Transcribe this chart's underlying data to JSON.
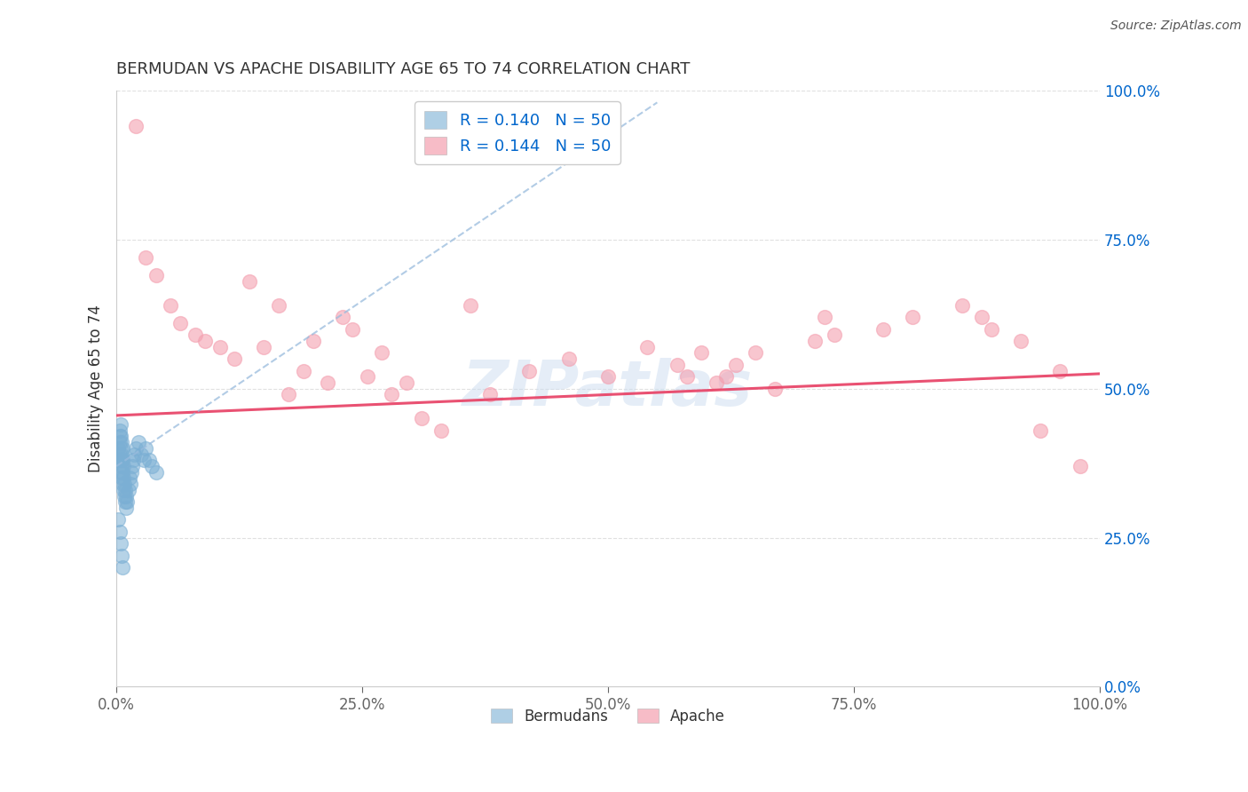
{
  "title": "BERMUDAN VS APACHE DISABILITY AGE 65 TO 74 CORRELATION CHART",
  "ylabel": "Disability Age 65 to 74",
  "source_text": "Source: ZipAtlas.com",
  "legend_blue_r": "R = 0.140",
  "legend_blue_n": "N = 50",
  "legend_pink_r": "R = 0.144",
  "legend_pink_n": "N = 50",
  "legend_blue_label": "Bermudans",
  "legend_pink_label": "Apache",
  "xlim": [
    0.0,
    1.0
  ],
  "ylim": [
    0.0,
    1.0
  ],
  "xticks": [
    0.0,
    0.25,
    0.5,
    0.75,
    1.0
  ],
  "yticks": [
    0.0,
    0.25,
    0.5,
    0.75,
    1.0
  ],
  "xticklabels": [
    "0.0%",
    "25.0%",
    "50.0%",
    "75.0%",
    "100.0%"
  ],
  "yticklabels": [
    "0.0%",
    "25.0%",
    "50.0%",
    "75.0%",
    "100.0%"
  ],
  "blue_dot_color": "#7BAFD4",
  "pink_dot_color": "#F4A0B0",
  "blue_line_color": "#99BBDD",
  "pink_line_color": "#E8476A",
  "background_color": "#FFFFFF",
  "grid_color": "#DDDDDD",
  "watermark_color": "#DDEEFF",
  "title_color": "#333333",
  "tick_color": "#0066CC",
  "ylabel_color": "#333333",
  "bermudans_x": [
    0.002,
    0.002,
    0.003,
    0.003,
    0.003,
    0.003,
    0.004,
    0.004,
    0.004,
    0.004,
    0.004,
    0.005,
    0.005,
    0.005,
    0.005,
    0.005,
    0.006,
    0.006,
    0.006,
    0.006,
    0.007,
    0.007,
    0.007,
    0.008,
    0.008,
    0.009,
    0.009,
    0.01,
    0.01,
    0.011,
    0.012,
    0.013,
    0.014,
    0.015,
    0.016,
    0.017,
    0.018,
    0.02,
    0.022,
    0.025,
    0.028,
    0.03,
    0.033,
    0.036,
    0.04,
    0.002,
    0.003,
    0.004,
    0.005,
    0.006
  ],
  "bermudans_y": [
    0.38,
    0.4,
    0.42,
    0.39,
    0.41,
    0.43,
    0.36,
    0.38,
    0.4,
    0.42,
    0.44,
    0.35,
    0.37,
    0.39,
    0.41,
    0.38,
    0.34,
    0.36,
    0.38,
    0.4,
    0.33,
    0.35,
    0.37,
    0.32,
    0.34,
    0.31,
    0.33,
    0.3,
    0.32,
    0.31,
    0.33,
    0.35,
    0.34,
    0.36,
    0.37,
    0.38,
    0.39,
    0.4,
    0.41,
    0.39,
    0.38,
    0.4,
    0.38,
    0.37,
    0.36,
    0.28,
    0.26,
    0.24,
    0.22,
    0.2
  ],
  "apache_x": [
    0.02,
    0.03,
    0.04,
    0.055,
    0.065,
    0.08,
    0.09,
    0.105,
    0.12,
    0.135,
    0.15,
    0.165,
    0.175,
    0.19,
    0.2,
    0.215,
    0.23,
    0.24,
    0.255,
    0.27,
    0.28,
    0.295,
    0.31,
    0.33,
    0.36,
    0.38,
    0.42,
    0.46,
    0.5,
    0.54,
    0.57,
    0.58,
    0.595,
    0.61,
    0.62,
    0.63,
    0.65,
    0.67,
    0.71,
    0.72,
    0.73,
    0.78,
    0.81,
    0.86,
    0.88,
    0.89,
    0.92,
    0.94,
    0.96,
    0.98
  ],
  "apache_y": [
    0.94,
    0.72,
    0.69,
    0.64,
    0.61,
    0.59,
    0.58,
    0.57,
    0.55,
    0.68,
    0.57,
    0.64,
    0.49,
    0.53,
    0.58,
    0.51,
    0.62,
    0.6,
    0.52,
    0.56,
    0.49,
    0.51,
    0.45,
    0.43,
    0.64,
    0.49,
    0.53,
    0.55,
    0.52,
    0.57,
    0.54,
    0.52,
    0.56,
    0.51,
    0.52,
    0.54,
    0.56,
    0.5,
    0.58,
    0.62,
    0.59,
    0.6,
    0.62,
    0.64,
    0.62,
    0.6,
    0.58,
    0.43,
    0.53,
    0.37
  ],
  "pink_line_x0": 0.0,
  "pink_line_y0": 0.455,
  "pink_line_x1": 1.0,
  "pink_line_y1": 0.525,
  "blue_line_x0": 0.0,
  "blue_line_y0": 0.37,
  "blue_line_x1": 0.55,
  "blue_line_y1": 0.98
}
